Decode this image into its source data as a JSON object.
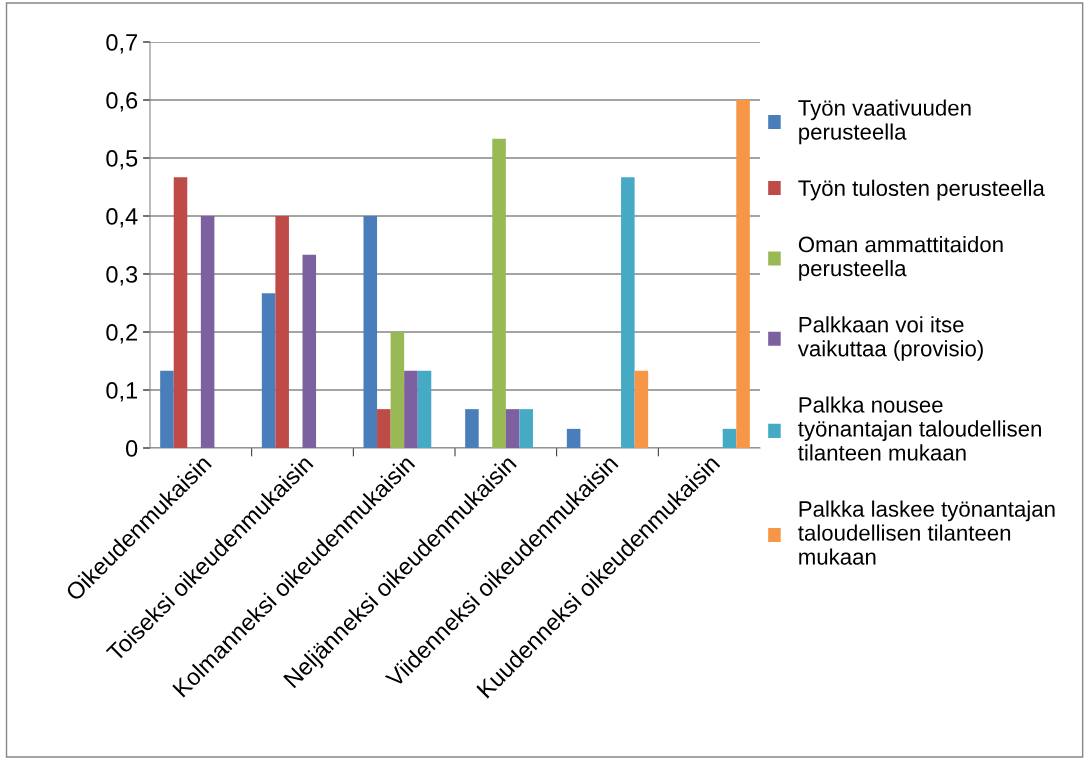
{
  "chart_data": {
    "type": "bar",
    "categories": [
      "Oikeudenmukaisin",
      "Toiseksi oikeudenmukaisin",
      "Kolmanneksi oikeudenmukaisin",
      "Neljänneksi oikeudenmukaisin",
      "Viidenneksi oikeudenmukaisin",
      "Kuudenneksi oikeudenmukaisin"
    ],
    "series": [
      {
        "name": "Työn vaativuuden\nperusteella",
        "color": "#4a7ebb",
        "values": [
          0.133,
          0.267,
          0.4,
          0.067,
          0.033,
          0
        ]
      },
      {
        "name": "Työn tulosten perusteella",
        "color": "#be4b48",
        "values": [
          0.467,
          0.4,
          0.067,
          0,
          0,
          0
        ]
      },
      {
        "name": "Oman ammattitaidon\nperusteella",
        "color": "#98b954",
        "values": [
          0,
          0,
          0.2,
          0.533,
          0,
          0
        ]
      },
      {
        "name": "Palkkaan voi itse\nvaikuttaa (provisio)",
        "color": "#7d60a0",
        "values": [
          0.4,
          0.333,
          0.133,
          0.067,
          0,
          0
        ]
      },
      {
        "name": "Palkka nousee\ntyönantajan taloudellisen\ntilanteen mukaan",
        "color": "#46aac5",
        "values": [
          0,
          0,
          0.133,
          0.067,
          0.467,
          0.033
        ]
      },
      {
        "name": "Palkka laskee työnantajan\ntaloudellisen tilanteen\nmukaan",
        "color": "#f79646",
        "values": [
          0,
          0,
          0,
          0,
          0.133,
          0.6
        ]
      }
    ],
    "ylim": [
      0,
      0.7
    ],
    "yticks": [
      {
        "value": 0,
        "label": "0"
      },
      {
        "value": 0.1,
        "label": "0,1"
      },
      {
        "value": 0.2,
        "label": "0,2"
      },
      {
        "value": 0.3,
        "label": "0,3"
      },
      {
        "value": 0.4,
        "label": "0,4"
      },
      {
        "value": 0.5,
        "label": "0,5"
      },
      {
        "value": 0.6,
        "label": "0,6"
      },
      {
        "value": 0.7,
        "label": "0,7"
      }
    ],
    "grid": "y",
    "legend": "right"
  }
}
